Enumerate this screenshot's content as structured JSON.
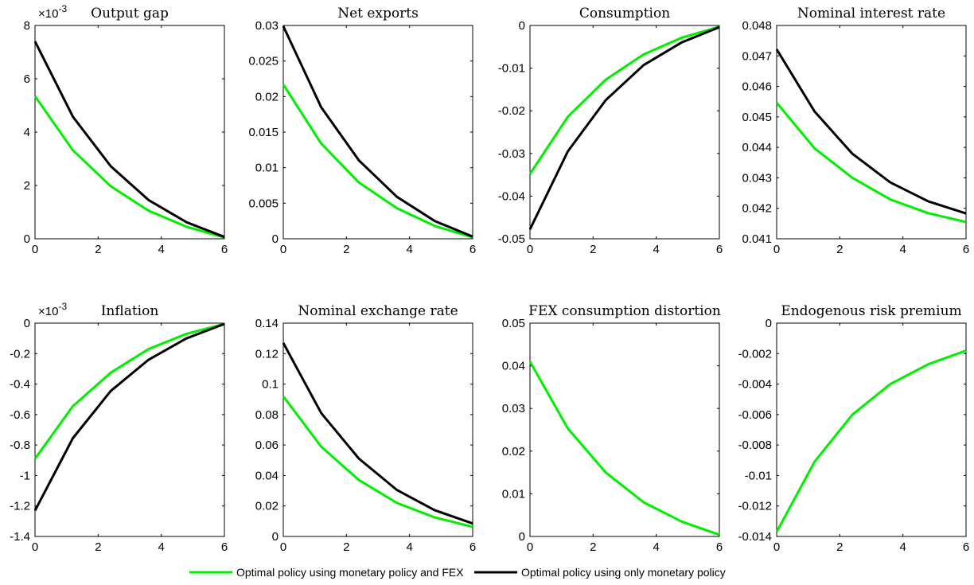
{
  "colors": {
    "green": "#00ee00",
    "black": "#000000"
  },
  "legend": [
    {
      "label": "Optimal policy using monetary policy and FEX",
      "color": "#00ee00"
    },
    {
      "label": "Optimal policy using only monetary policy",
      "color": "#000000"
    }
  ],
  "chart_data": [
    {
      "type": "line",
      "title": "Output gap",
      "scale_label": "×10-3",
      "scale_mantissa": "×10",
      "scale_exponent": "-3",
      "xlim": [
        0,
        6
      ],
      "ylim": [
        0,
        8
      ],
      "xticks": [
        0,
        2,
        4,
        6
      ],
      "xtick_labels": [
        "0",
        "2",
        "4",
        "6"
      ],
      "yticks": [
        0,
        2,
        4,
        6,
        8
      ],
      "ytick_labels": [
        "0",
        "2",
        "4",
        "6",
        "8"
      ],
      "x": [
        0,
        1.2,
        2.4,
        3.6,
        4.8,
        6
      ],
      "series": [
        {
          "color": "#00ee00",
          "values": [
            5.35,
            3.32,
            1.97,
            1.05,
            0.45,
            0.05
          ]
        },
        {
          "color": "#000000",
          "values": [
            7.4,
            4.58,
            2.72,
            1.45,
            0.62,
            0.07
          ]
        }
      ]
    },
    {
      "type": "line",
      "title": "Net exports",
      "xlim": [
        0,
        6
      ],
      "ylim": [
        0,
        0.03
      ],
      "xticks": [
        0,
        2,
        4,
        6
      ],
      "xtick_labels": [
        "0",
        "2",
        "4",
        "6"
      ],
      "yticks": [
        0,
        0.005,
        0.01,
        0.015,
        0.02,
        0.025,
        0.03
      ],
      "ytick_labels": [
        "0",
        "0.005",
        "0.01",
        "0.015",
        "0.02",
        "0.025",
        "0.03"
      ],
      "x": [
        0,
        1.2,
        2.4,
        3.6,
        4.8,
        6
      ],
      "series": [
        {
          "color": "#00ee00",
          "values": [
            0.0217,
            0.0134,
            0.0079,
            0.0043,
            0.0018,
            0.0002
          ]
        },
        {
          "color": "#000000",
          "values": [
            0.0299,
            0.0185,
            0.011,
            0.0059,
            0.0025,
            0.0003
          ]
        }
      ]
    },
    {
      "type": "line",
      "title": "Consumption",
      "xlim": [
        0,
        6
      ],
      "ylim": [
        -0.05,
        0
      ],
      "xticks": [
        0,
        2,
        4,
        6
      ],
      "xtick_labels": [
        "0",
        "2",
        "4",
        "6"
      ],
      "yticks": [
        -0.05,
        -0.04,
        -0.03,
        -0.02,
        -0.01,
        0
      ],
      "ytick_labels": [
        "-0.05",
        "-0.04",
        "-0.03",
        "-0.02",
        "-0.01",
        "0"
      ],
      "x": [
        0,
        1.2,
        2.4,
        3.6,
        4.8,
        6
      ],
      "series": [
        {
          "color": "#00ee00",
          "values": [
            -0.0348,
            -0.0214,
            -0.0127,
            -0.0068,
            -0.0029,
            -0.0003
          ]
        },
        {
          "color": "#000000",
          "values": [
            -0.0478,
            -0.0295,
            -0.0175,
            -0.0093,
            -0.004,
            -0.0004
          ]
        }
      ]
    },
    {
      "type": "line",
      "title": "Nominal interest rate",
      "xlim": [
        0,
        6
      ],
      "ylim": [
        0.041,
        0.048
      ],
      "xticks": [
        0,
        2,
        4,
        6
      ],
      "xtick_labels": [
        "0",
        "2",
        "4",
        "6"
      ],
      "yticks": [
        0.041,
        0.042,
        0.043,
        0.044,
        0.045,
        0.046,
        0.047,
        0.048
      ],
      "ytick_labels": [
        "0.041",
        "0.042",
        "0.043",
        "0.044",
        "0.045",
        "0.046",
        "0.047",
        "0.048"
      ],
      "x": [
        0,
        1.2,
        2.4,
        3.6,
        4.8,
        6
      ],
      "series": [
        {
          "color": "#00ee00",
          "values": [
            0.04547,
            0.04397,
            0.043,
            0.04229,
            0.04184,
            0.04155
          ]
        },
        {
          "color": "#000000",
          "values": [
            0.04722,
            0.04518,
            0.04379,
            0.04285,
            0.04223,
            0.04183
          ]
        }
      ]
    },
    {
      "type": "line",
      "title": "Inflation",
      "scale_label": "×10-3",
      "scale_mantissa": "×10",
      "scale_exponent": "-3",
      "xlim": [
        0,
        6
      ],
      "ylim": [
        -1.4,
        0
      ],
      "xticks": [
        0,
        2,
        4,
        6
      ],
      "xtick_labels": [
        "0",
        "2",
        "4",
        "6"
      ],
      "yticks": [
        -1.4,
        -1.2,
        -1,
        -0.8,
        -0.6,
        -0.4,
        -0.2,
        0
      ],
      "ytick_labels": [
        "-1.4",
        "-1.2",
        "-1",
        "-0.8",
        "-0.6",
        "-0.4",
        "-0.2",
        "0"
      ],
      "x": [
        0,
        1.2,
        2.4,
        3.6,
        4.8,
        6
      ],
      "series": [
        {
          "color": "#00ee00",
          "values": [
            -0.89,
            -0.545,
            -0.325,
            -0.17,
            -0.07,
            -0.005
          ]
        },
        {
          "color": "#000000",
          "values": [
            -1.23,
            -0.755,
            -0.445,
            -0.24,
            -0.1,
            -0.005
          ]
        }
      ]
    },
    {
      "type": "line",
      "title": "Nominal exchange rate",
      "xlim": [
        0,
        6
      ],
      "ylim": [
        0,
        0.14
      ],
      "xticks": [
        0,
        2,
        4,
        6
      ],
      "xtick_labels": [
        "0",
        "2",
        "4",
        "6"
      ],
      "yticks": [
        0,
        0.02,
        0.04,
        0.06,
        0.08,
        0.1,
        0.12,
        0.14
      ],
      "ytick_labels": [
        "0",
        "0.02",
        "0.04",
        "0.06",
        "0.08",
        "0.1",
        "0.12",
        "0.14"
      ],
      "x": [
        0,
        1.2,
        2.4,
        3.6,
        4.8,
        6
      ],
      "series": [
        {
          "color": "#00ee00",
          "values": [
            0.092,
            0.059,
            0.037,
            0.022,
            0.0125,
            0.0063
          ]
        },
        {
          "color": "#000000",
          "values": [
            0.127,
            0.081,
            0.051,
            0.0305,
            0.0172,
            0.0085
          ]
        }
      ]
    },
    {
      "type": "line",
      "title": "FEX consumption distortion",
      "xlim": [
        0,
        6
      ],
      "ylim": [
        0,
        0.05
      ],
      "xticks": [
        0,
        2,
        4,
        6
      ],
      "xtick_labels": [
        "0",
        "2",
        "4",
        "6"
      ],
      "yticks": [
        0,
        0.01,
        0.02,
        0.03,
        0.04,
        0.05
      ],
      "ytick_labels": [
        "0",
        "0.01",
        "0.02",
        "0.03",
        "0.04",
        "0.05"
      ],
      "x": [
        0,
        1.2,
        2.4,
        3.6,
        4.8,
        6
      ],
      "series": [
        {
          "color": "#00ee00",
          "values": [
            0.041,
            0.0253,
            0.015,
            0.008,
            0.0035,
            0.0004
          ]
        }
      ]
    },
    {
      "type": "line",
      "title": "Endogenous risk premium",
      "xlim": [
        0,
        6
      ],
      "ylim": [
        -0.014,
        0
      ],
      "xticks": [
        0,
        2,
        4,
        6
      ],
      "xtick_labels": [
        "0",
        "2",
        "4",
        "6"
      ],
      "yticks": [
        -0.014,
        -0.012,
        -0.01,
        -0.008,
        -0.006,
        -0.004,
        -0.002,
        0
      ],
      "ytick_labels": [
        "-0.014",
        "-0.012",
        "-0.01",
        "-0.008",
        "-0.006",
        "-0.004",
        "-0.002",
        "0"
      ],
      "x": [
        0,
        1.2,
        2.4,
        3.6,
        4.8,
        6
      ],
      "series": [
        {
          "color": "#00ee00",
          "values": [
            -0.0137,
            -0.0091,
            -0.006,
            -0.004,
            -0.0027,
            -0.0018
          ]
        }
      ]
    }
  ]
}
